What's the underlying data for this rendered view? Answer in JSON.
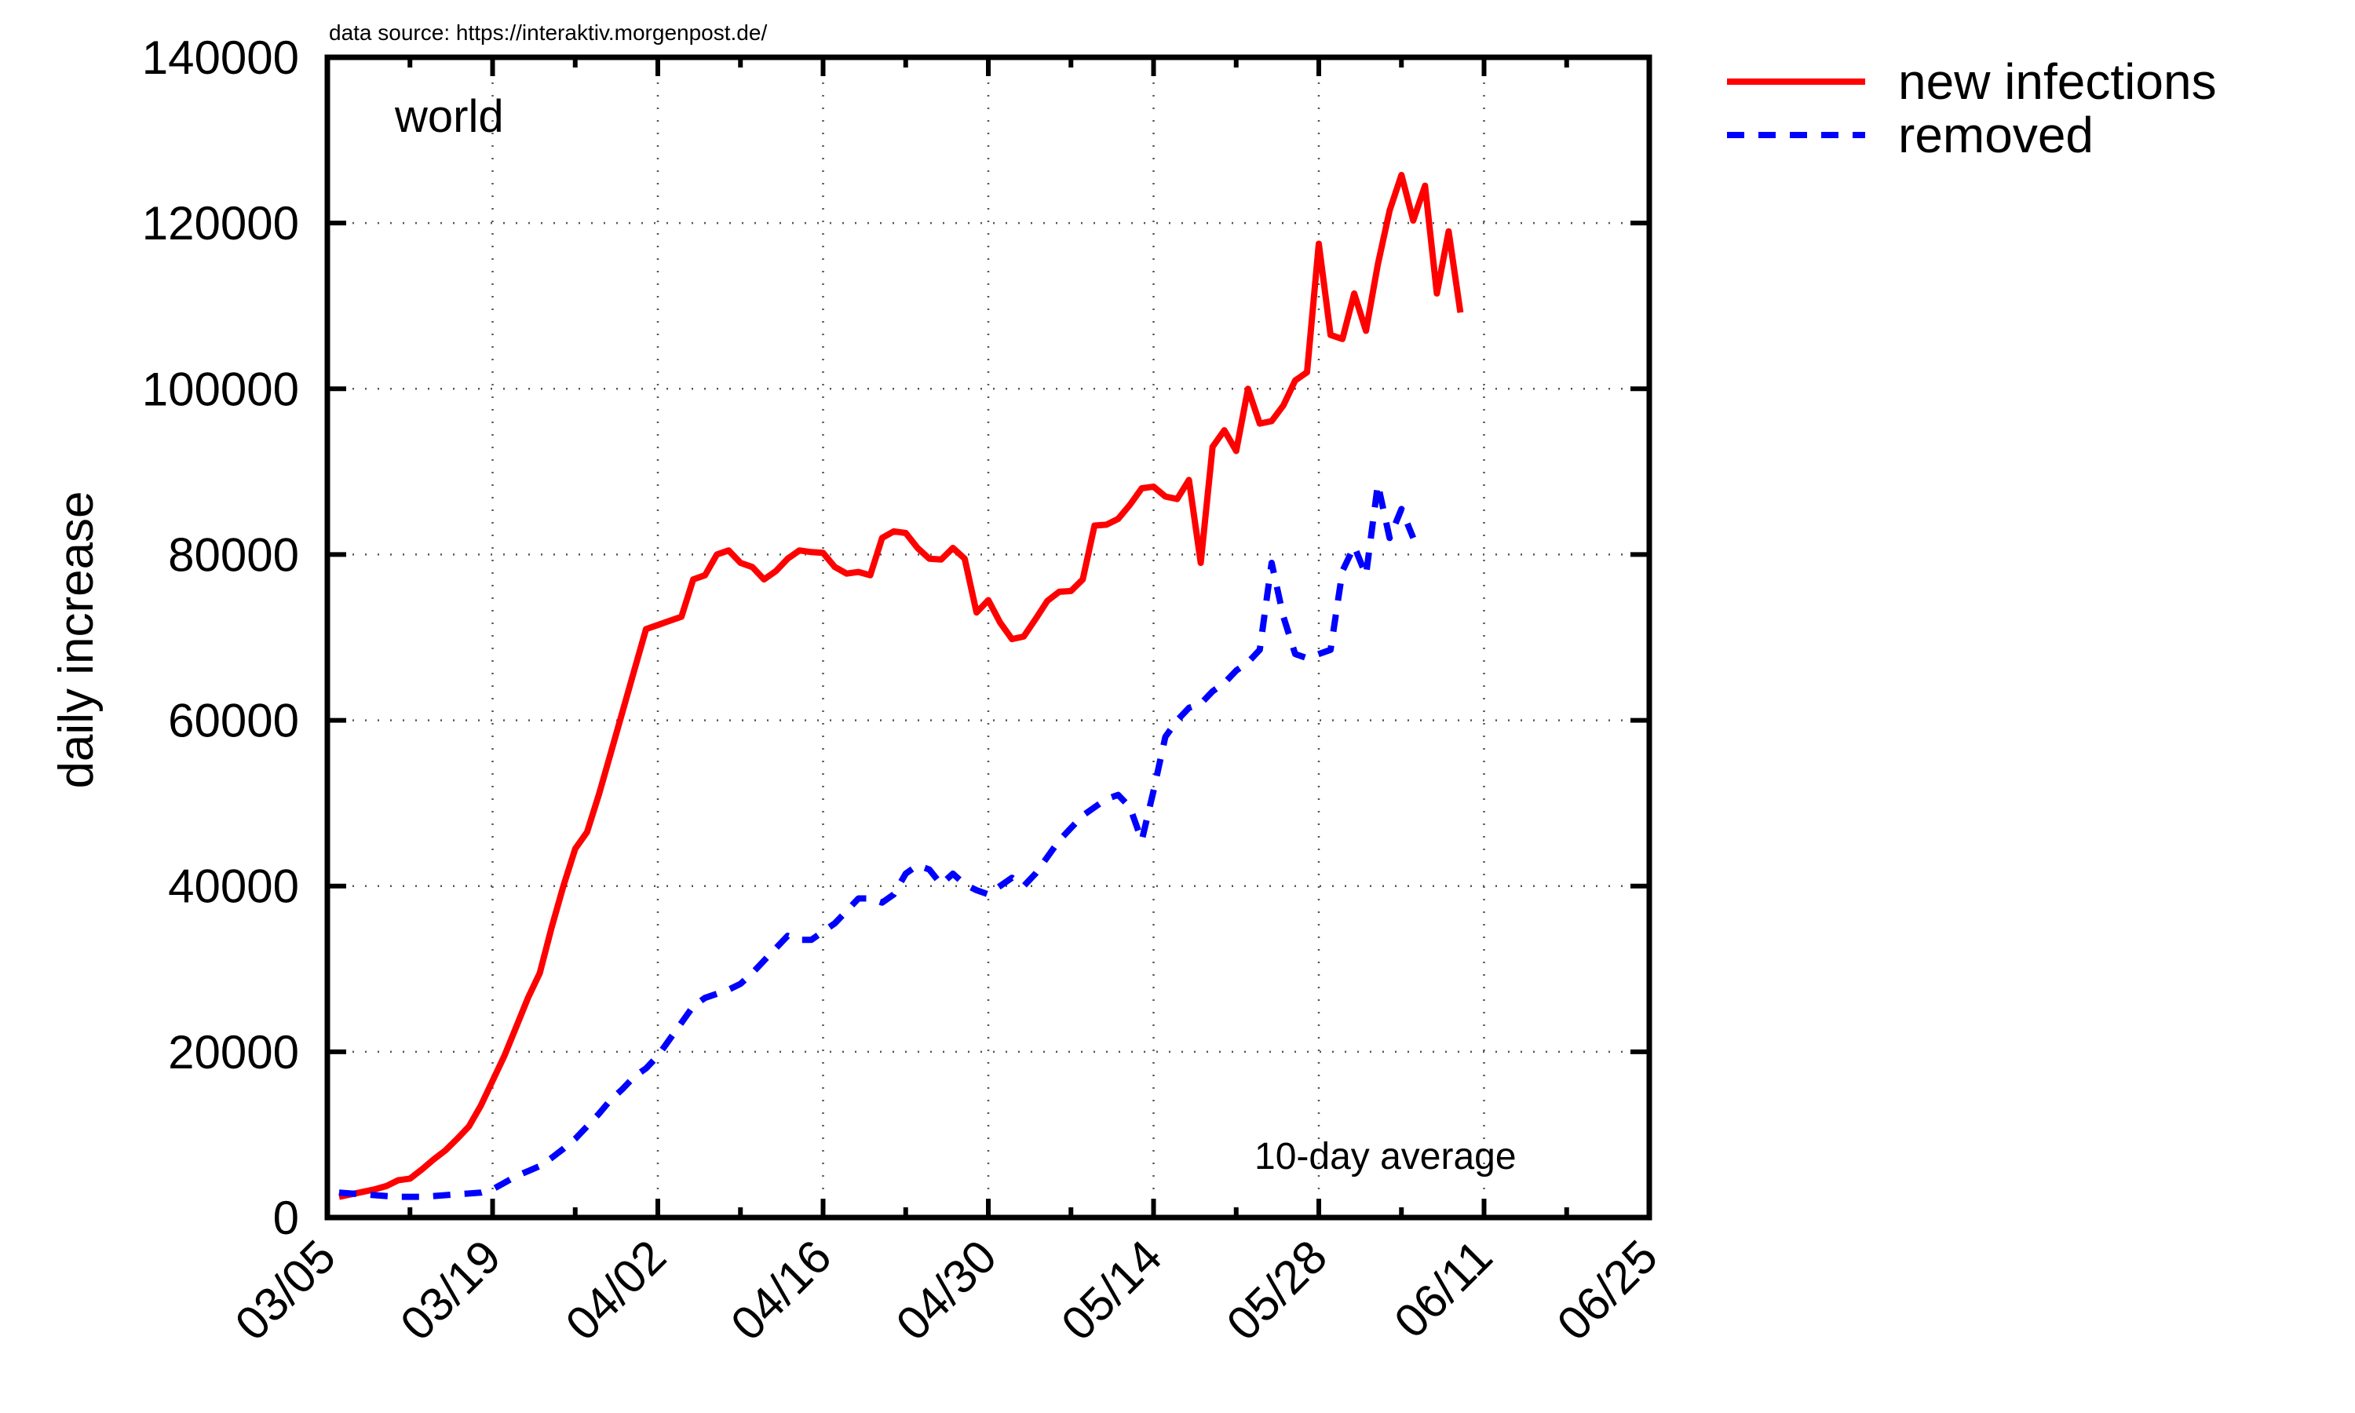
{
  "chart_data": {
    "type": "line",
    "source_note": "data source: https://interaktiv.morgenpost.de/",
    "region_label": "world",
    "note": "10-day average",
    "ylabel": "daily increase",
    "xlabel": "",
    "ylim": [
      0,
      140000
    ],
    "xlim": [
      "03/05",
      "06/25"
    ],
    "grid": true,
    "legend_position": "top-right, outside plot",
    "x_tick_labels": [
      "03/05",
      "03/19",
      "04/02",
      "04/16",
      "04/30",
      "05/14",
      "05/28",
      "06/11",
      "06/25"
    ],
    "y_tick_labels": [
      "0",
      "20000",
      "40000",
      "60000",
      "80000",
      "100000",
      "120000",
      "140000"
    ],
    "x_start_date": "03/05",
    "series": [
      {
        "name": "new infections",
        "color": "#ff0000",
        "style": "solid",
        "points": [
          [
            "03/06",
            2500
          ],
          [
            "03/07",
            2800
          ],
          [
            "03/08",
            3100
          ],
          [
            "03/09",
            3400
          ],
          [
            "03/10",
            3800
          ],
          [
            "03/11",
            4500
          ],
          [
            "03/12",
            4700
          ],
          [
            "03/13",
            5800
          ],
          [
            "03/14",
            7000
          ],
          [
            "03/15",
            8100
          ],
          [
            "03/16",
            9500
          ],
          [
            "03/17",
            11000
          ],
          [
            "03/18",
            13500
          ],
          [
            "03/19",
            16500
          ],
          [
            "03/20",
            19500
          ],
          [
            "03/21",
            23000
          ],
          [
            "03/22",
            26500
          ],
          [
            "03/23",
            29500
          ],
          [
            "03/24",
            35000
          ],
          [
            "03/25",
            40000
          ],
          [
            "03/26",
            44500
          ],
          [
            "03/27",
            46500
          ],
          [
            "03/28",
            51000
          ],
          [
            "03/29",
            56000
          ],
          [
            "03/30",
            61000
          ],
          [
            "03/31",
            66000
          ],
          [
            "04/01",
            71000
          ],
          [
            "04/02",
            71500
          ],
          [
            "04/03",
            72000
          ],
          [
            "04/04",
            72500
          ],
          [
            "04/05",
            77000
          ],
          [
            "04/06",
            77500
          ],
          [
            "04/07",
            80000
          ],
          [
            "04/08",
            80500
          ],
          [
            "04/09",
            79000
          ],
          [
            "04/10",
            78500
          ],
          [
            "04/11",
            77000
          ],
          [
            "04/12",
            78000
          ],
          [
            "04/13",
            79500
          ],
          [
            "04/14",
            80500
          ],
          [
            "04/15",
            80300
          ],
          [
            "04/16",
            80200
          ],
          [
            "04/17",
            78500
          ],
          [
            "04/18",
            77700
          ],
          [
            "04/19",
            77900
          ],
          [
            "04/20",
            77500
          ],
          [
            "04/21",
            82000
          ],
          [
            "04/22",
            82800
          ],
          [
            "04/23",
            82600
          ],
          [
            "04/24",
            80800
          ],
          [
            "04/25",
            79500
          ],
          [
            "04/26",
            79400
          ],
          [
            "04/27",
            80800
          ],
          [
            "04/28",
            79500
          ],
          [
            "04/29",
            73000
          ],
          [
            "04/30",
            74500
          ],
          [
            "05/01",
            71800
          ],
          [
            "05/02",
            69800
          ],
          [
            "05/03",
            70100
          ],
          [
            "05/04",
            72200
          ],
          [
            "05/05",
            74400
          ],
          [
            "05/06",
            75500
          ],
          [
            "05/07",
            75600
          ],
          [
            "05/08",
            77000
          ],
          [
            "05/09",
            83500
          ],
          [
            "05/10",
            83600
          ],
          [
            "05/11",
            84300
          ],
          [
            "05/12",
            86000
          ],
          [
            "05/13",
            88000
          ],
          [
            "05/14",
            88200
          ],
          [
            "05/15",
            87000
          ],
          [
            "05/16",
            86700
          ],
          [
            "05/17",
            89000
          ],
          [
            "05/18",
            79000
          ],
          [
            "05/19",
            93000
          ],
          [
            "05/20",
            95000
          ],
          [
            "05/21",
            92500
          ],
          [
            "05/22",
            100000
          ],
          [
            "05/23",
            95800
          ],
          [
            "05/24",
            96100
          ],
          [
            "05/25",
            98000
          ],
          [
            "05/26",
            101000
          ],
          [
            "05/27",
            102000
          ],
          [
            "05/28",
            117500
          ],
          [
            "05/29",
            106500
          ],
          [
            "05/30",
            106000
          ],
          [
            "05/31",
            111500
          ],
          [
            "06/01",
            107000
          ],
          [
            "06/02",
            115000
          ],
          [
            "06/03",
            121500
          ],
          [
            "06/04",
            125800
          ],
          [
            "06/05",
            120300
          ],
          [
            "06/06",
            124500
          ],
          [
            "06/07",
            111500
          ],
          [
            "06/08",
            119000
          ],
          [
            "06/09",
            109200
          ]
        ]
      },
      {
        "name": "removed",
        "color": "#0000ff",
        "style": "dashed",
        "points": [
          [
            "03/06",
            3000
          ],
          [
            "03/07",
            2900
          ],
          [
            "03/08",
            2800
          ],
          [
            "03/09",
            2700
          ],
          [
            "03/10",
            2600
          ],
          [
            "03/11",
            2500
          ],
          [
            "03/12",
            2500
          ],
          [
            "03/13",
            2500
          ],
          [
            "03/14",
            2600
          ],
          [
            "03/15",
            2700
          ],
          [
            "03/16",
            2800
          ],
          [
            "03/17",
            2900
          ],
          [
            "03/18",
            3000
          ],
          [
            "03/19",
            3400
          ],
          [
            "03/20",
            4200
          ],
          [
            "03/21",
            5000
          ],
          [
            "03/22",
            5600
          ],
          [
            "03/23",
            6200
          ],
          [
            "03/24",
            7200
          ],
          [
            "03/25",
            8300
          ],
          [
            "03/26",
            9500
          ],
          [
            "03/27",
            11000
          ],
          [
            "03/28",
            12500
          ],
          [
            "03/29",
            14200
          ],
          [
            "03/30",
            15500
          ],
          [
            "03/31",
            17000
          ],
          [
            "04/01",
            18000
          ],
          [
            "04/02",
            19500
          ],
          [
            "04/03",
            21500
          ],
          [
            "04/04",
            23500
          ],
          [
            "04/05",
            25500
          ],
          [
            "04/06",
            26500
          ],
          [
            "04/07",
            27000
          ],
          [
            "04/08",
            27500
          ],
          [
            "04/09",
            28200
          ],
          [
            "04/10",
            29500
          ],
          [
            "04/11",
            31000
          ],
          [
            "04/12",
            32500
          ],
          [
            "04/13",
            34000
          ],
          [
            "04/14",
            33500
          ],
          [
            "04/15",
            33500
          ],
          [
            "04/16",
            34500
          ],
          [
            "04/17",
            35500
          ],
          [
            "04/18",
            37000
          ],
          [
            "04/19",
            38500
          ],
          [
            "04/20",
            38500
          ],
          [
            "04/21",
            38000
          ],
          [
            "04/22",
            39000
          ],
          [
            "04/23",
            41500
          ],
          [
            "04/24",
            42500
          ],
          [
            "04/25",
            42000
          ],
          [
            "04/26",
            40200
          ],
          [
            "04/27",
            41500
          ],
          [
            "04/28",
            40200
          ],
          [
            "04/29",
            39500
          ],
          [
            "04/30",
            39000
          ],
          [
            "05/01",
            40000
          ],
          [
            "05/02",
            41000
          ],
          [
            "05/03",
            40000
          ],
          [
            "05/04",
            41500
          ],
          [
            "05/05",
            43500
          ],
          [
            "05/06",
            45500
          ],
          [
            "05/07",
            47000
          ],
          [
            "05/08",
            48500
          ],
          [
            "05/09",
            49500
          ],
          [
            "05/10",
            50500
          ],
          [
            "05/11",
            51000
          ],
          [
            "05/12",
            49500
          ],
          [
            "05/13",
            45500
          ],
          [
            "05/14",
            51500
          ],
          [
            "05/15",
            58000
          ],
          [
            "05/16",
            60000
          ],
          [
            "05/17",
            61500
          ],
          [
            "05/18",
            62000
          ],
          [
            "05/19",
            63500
          ],
          [
            "05/20",
            64500
          ],
          [
            "05/21",
            66000
          ],
          [
            "05/22",
            67000
          ],
          [
            "05/23",
            68500
          ],
          [
            "05/24",
            79000
          ],
          [
            "05/25",
            72500
          ],
          [
            "05/26",
            68000
          ],
          [
            "05/27",
            67500
          ],
          [
            "05/28",
            68000
          ],
          [
            "05/29",
            68500
          ],
          [
            "05/30",
            78000
          ],
          [
            "05/31",
            81000
          ],
          [
            "06/01",
            77500
          ],
          [
            "06/02",
            88500
          ],
          [
            "06/03",
            82000
          ],
          [
            "06/04",
            85500
          ],
          [
            "06/05",
            82000
          ]
        ]
      }
    ]
  }
}
